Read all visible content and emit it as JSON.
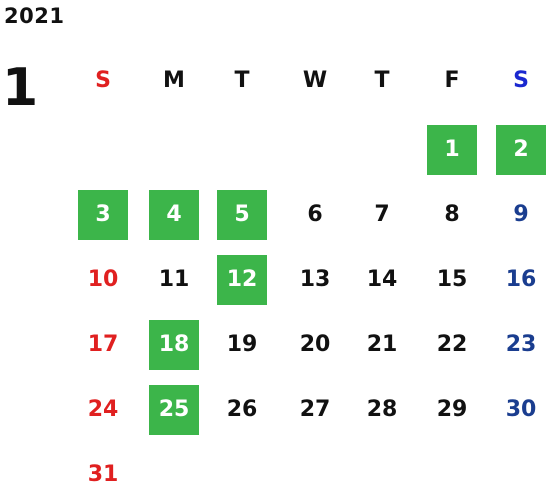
{
  "calendar": {
    "year": "2021",
    "month": "1",
    "weekdays": [
      {
        "label": "S",
        "type": "sun"
      },
      {
        "label": "M",
        "type": "wk"
      },
      {
        "label": "T",
        "type": "wk"
      },
      {
        "label": "W",
        "type": "wk"
      },
      {
        "label": "T",
        "type": "wk"
      },
      {
        "label": "F",
        "type": "wk"
      },
      {
        "label": "S",
        "type": "sat"
      }
    ],
    "weeks": [
      [
        null,
        null,
        null,
        null,
        null,
        {
          "d": "1",
          "hl": true
        },
        {
          "d": "2",
          "hl": true
        }
      ],
      [
        {
          "d": "3",
          "hl": true
        },
        {
          "d": "4",
          "hl": true
        },
        {
          "d": "5",
          "hl": true
        },
        {
          "d": "6"
        },
        {
          "d": "7"
        },
        {
          "d": "8"
        },
        {
          "d": "9"
        }
      ],
      [
        {
          "d": "10"
        },
        {
          "d": "11"
        },
        {
          "d": "12",
          "hl": true
        },
        {
          "d": "13"
        },
        {
          "d": "14"
        },
        {
          "d": "15"
        },
        {
          "d": "16"
        }
      ],
      [
        {
          "d": "17"
        },
        {
          "d": "18",
          "hl": true
        },
        {
          "d": "19"
        },
        {
          "d": "20"
        },
        {
          "d": "21"
        },
        {
          "d": "22"
        },
        {
          "d": "23"
        }
      ],
      [
        {
          "d": "24"
        },
        {
          "d": "25",
          "hl": true
        },
        {
          "d": "26"
        },
        {
          "d": "27"
        },
        {
          "d": "28"
        },
        {
          "d": "29"
        },
        {
          "d": "30"
        }
      ],
      [
        {
          "d": "31"
        },
        null,
        null,
        null,
        null,
        null,
        null
      ]
    ],
    "colors": {
      "highlight": "#3cb54a",
      "sunday": "#e02020",
      "saturday": "#1a3d8f",
      "saturday_header": "#1a28d0",
      "weekday": "#111111"
    }
  }
}
